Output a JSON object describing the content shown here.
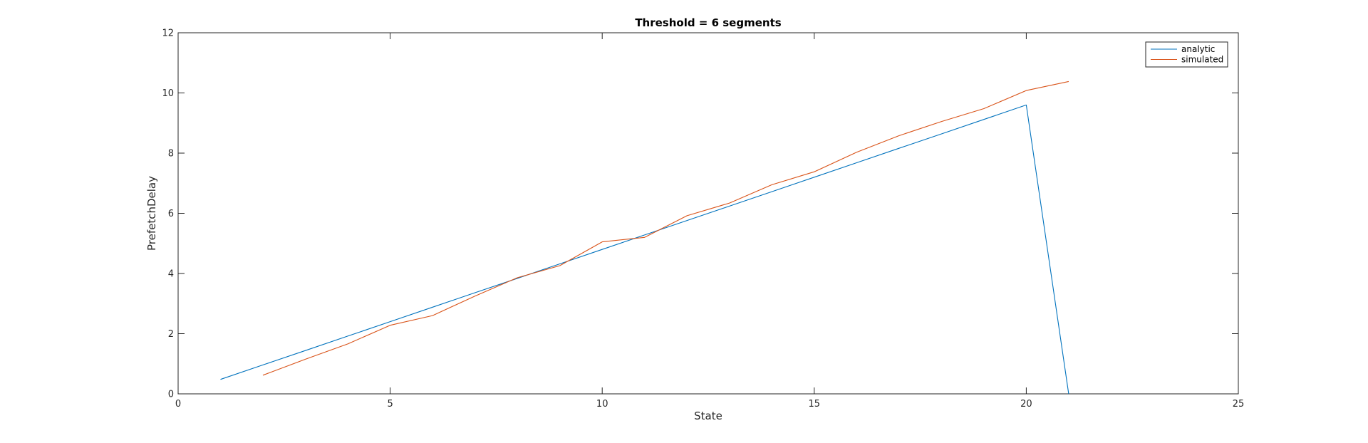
{
  "chart_data": {
    "type": "line",
    "title": "Threshold = 6 segments",
    "xlabel": "State",
    "ylabel": "PrefetchDelay",
    "xlim": [
      0,
      25
    ],
    "ylim": [
      0,
      12
    ],
    "xticks": [
      0,
      5,
      10,
      15,
      20,
      25
    ],
    "yticks": [
      0,
      2,
      4,
      6,
      8,
      10,
      12
    ],
    "grid": false,
    "legend_position": "top-right",
    "series": [
      {
        "name": "analytic",
        "color": "#0072bd",
        "x": [
          1,
          2,
          3,
          4,
          5,
          6,
          7,
          8,
          9,
          10,
          11,
          12,
          13,
          14,
          15,
          16,
          17,
          18,
          19,
          20,
          21
        ],
        "y": [
          0.48,
          0.96,
          1.44,
          1.92,
          2.4,
          2.88,
          3.36,
          3.84,
          4.32,
          4.8,
          5.28,
          5.76,
          6.24,
          6.72,
          7.2,
          7.68,
          8.16,
          8.64,
          9.12,
          9.6,
          0
        ]
      },
      {
        "name": "simulated",
        "color": "#d95319",
        "x": [
          2,
          3,
          4,
          5,
          6,
          7,
          8,
          9,
          10,
          11,
          12,
          13,
          14,
          15,
          16,
          17,
          18,
          19,
          20,
          21
        ],
        "y": [
          0.62,
          1.15,
          1.66,
          2.28,
          2.6,
          3.25,
          3.86,
          4.26,
          5.05,
          5.2,
          5.92,
          6.34,
          6.95,
          7.38,
          8.03,
          8.58,
          9.05,
          9.48,
          10.08,
          10.38
        ]
      }
    ]
  }
}
